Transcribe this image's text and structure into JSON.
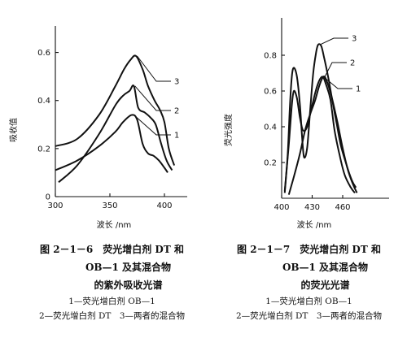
{
  "chart_data": [
    {
      "type": "line",
      "ylabel": "吸收值",
      "xlabel": "波长 /nm",
      "xlim": [
        300,
        420
      ],
      "ylim": [
        0,
        0.7
      ],
      "x_ticks": [
        300,
        350,
        400
      ],
      "y_ticks": [
        0,
        0.2,
        0.4,
        0.6
      ],
      "series": [
        {
          "name": "1",
          "points": [
            [
              300,
              0.11
            ],
            [
              320,
              0.15
            ],
            [
              340,
              0.21
            ],
            [
              355,
              0.27
            ],
            [
              362,
              0.31
            ],
            [
              370,
              0.34
            ],
            [
              375,
              0.32
            ],
            [
              380,
              0.22
            ],
            [
              385,
              0.18
            ],
            [
              390,
              0.17
            ],
            [
              395,
              0.15
            ],
            [
              400,
              0.12
            ],
            [
              403,
              0.1
            ]
          ]
        },
        {
          "name": "2",
          "points": [
            [
              303,
              0.06
            ],
            [
              320,
              0.13
            ],
            [
              340,
              0.26
            ],
            [
              355,
              0.38
            ],
            [
              362,
              0.42
            ],
            [
              368,
              0.44
            ],
            [
              372,
              0.46
            ],
            [
              376,
              0.37
            ],
            [
              382,
              0.35
            ],
            [
              387,
              0.33
            ],
            [
              392,
              0.3
            ],
            [
              397,
              0.22
            ],
            [
              402,
              0.15
            ],
            [
              407,
              0.11
            ]
          ]
        },
        {
          "name": "3",
          "points": [
            [
              300,
              0.21
            ],
            [
              320,
              0.24
            ],
            [
              340,
              0.34
            ],
            [
              355,
              0.46
            ],
            [
              363,
              0.53
            ],
            [
              369,
              0.57
            ],
            [
              374,
              0.585
            ],
            [
              380,
              0.53
            ],
            [
              385,
              0.46
            ],
            [
              391,
              0.4
            ],
            [
              396,
              0.36
            ],
            [
              400,
              0.31
            ],
            [
              404,
              0.2
            ],
            [
              409,
              0.13
            ]
          ]
        }
      ],
      "label_numbers": [
        "1",
        "2",
        "3"
      ]
    },
    {
      "type": "line",
      "ylabel": "荧光强度",
      "xlabel": "波长 /nm",
      "xlim": [
        390,
        480
      ],
      "ylim": [
        0,
        0.9
      ],
      "x_ticks": [
        400,
        430,
        460
      ],
      "y_ticks": [
        0.2,
        0.4,
        0.6,
        0.8
      ],
      "series": [
        {
          "name": "1",
          "points": [
            [
              403,
              0.04
            ],
            [
              407,
              0.3
            ],
            [
              410,
              0.52
            ],
            [
              412,
              0.6
            ],
            [
              415,
              0.56
            ],
            [
              418,
              0.45
            ],
            [
              421,
              0.38
            ],
            [
              425,
              0.4
            ],
            [
              430,
              0.52
            ],
            [
              435,
              0.63
            ],
            [
              440,
              0.68
            ],
            [
              444,
              0.63
            ],
            [
              448,
              0.55
            ],
            [
              452,
              0.38
            ],
            [
              457,
              0.24
            ],
            [
              462,
              0.13
            ],
            [
              468,
              0.06
            ],
            [
              472,
              0.03
            ]
          ]
        },
        {
          "name": "2",
          "points": [
            [
              407,
              0.02
            ],
            [
              412,
              0.12
            ],
            [
              418,
              0.25
            ],
            [
              423,
              0.38
            ],
            [
              428,
              0.47
            ],
            [
              433,
              0.55
            ],
            [
              437,
              0.63
            ],
            [
              441,
              0.68
            ],
            [
              444,
              0.66
            ],
            [
              449,
              0.57
            ],
            [
              455,
              0.42
            ],
            [
              460,
              0.28
            ],
            [
              465,
              0.16
            ],
            [
              470,
              0.08
            ],
            [
              474,
              0.03
            ]
          ]
        },
        {
          "name": "3",
          "points": [
            [
              403,
              0.03
            ],
            [
              406,
              0.25
            ],
            [
              408,
              0.5
            ],
            [
              410,
              0.68
            ],
            [
              412,
              0.73
            ],
            [
              415,
              0.68
            ],
            [
              418,
              0.52
            ],
            [
              420,
              0.35
            ],
            [
              422,
              0.23
            ],
            [
              425,
              0.28
            ],
            [
              428,
              0.49
            ],
            [
              431,
              0.7
            ],
            [
              434,
              0.82
            ],
            [
              436,
              0.86
            ],
            [
              439,
              0.85
            ],
            [
              442,
              0.78
            ],
            [
              446,
              0.67
            ],
            [
              450,
              0.54
            ],
            [
              454,
              0.42
            ],
            [
              458,
              0.3
            ],
            [
              463,
              0.2
            ],
            [
              469,
              0.1
            ],
            [
              473,
              0.06
            ]
          ]
        }
      ],
      "label_numbers": [
        "1",
        "2",
        "3"
      ]
    }
  ],
  "captions": {
    "left": {
      "line1": "图 2－1－6　荧光增白剂 DT 和",
      "line2": "OB—1 及其混合物",
      "line3": "的紫外吸收光谱",
      "legend1": "1—荧光增白剂 OB—1",
      "legend2": "2—荧光增白剂 DT　3—两者的混合物"
    },
    "right": {
      "line1": "图 2－1－7　荧光增白剂 DT 和",
      "line2": "OB—1 及其混合物",
      "line3": "的荧光光谱",
      "legend1": "1—荧光增白剂 OB—1",
      "legend2": "2—荧光增白剂 DT　3—两者的混合物"
    }
  }
}
